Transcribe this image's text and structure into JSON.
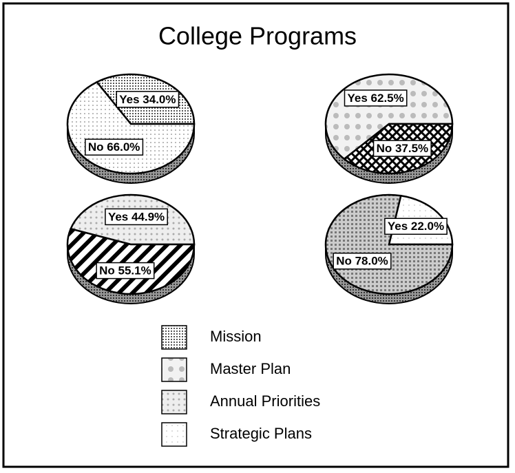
{
  "title": "College Programs",
  "chart_data": [
    {
      "type": "pie",
      "name": "Mission",
      "values": [
        34,
        66
      ],
      "value_labels": [
        "Yes 34.0%",
        "No 66.0%"
      ]
    },
    {
      "type": "pie",
      "name": "Master Plan",
      "values": [
        62.5,
        37.5
      ],
      "value_labels": [
        "Yes 62.5%",
        "No 37.5%"
      ]
    },
    {
      "type": "pie",
      "name": "Annual Priorities",
      "values": [
        44.9,
        55.1
      ],
      "value_labels": [
        "Yes 44.9%",
        "No 55.1%"
      ]
    },
    {
      "type": "pie",
      "name": "Strategic Plans",
      "values": [
        22,
        78
      ],
      "value_labels": [
        "Yes 22.0%",
        "No 78.0%"
      ]
    }
  ]
}
